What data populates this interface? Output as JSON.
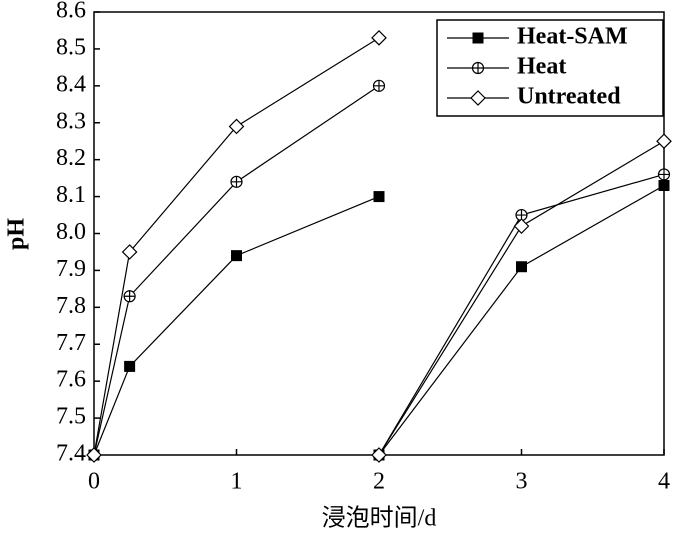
{
  "chart_data": {
    "type": "line",
    "x_label": "浸泡时间/d",
    "y_label": "pH",
    "x": [
      0,
      0.25,
      1,
      2,
      2,
      2,
      3,
      4
    ],
    "series": [
      {
        "name": "Heat-SAM",
        "color": "#000000",
        "marker": "square",
        "values": [
          7.4,
          7.64,
          7.94,
          8.1,
          null,
          7.4,
          7.91,
          8.13
        ]
      },
      {
        "name": "Heat",
        "color": "#000000",
        "marker": "circle-plus",
        "values": [
          7.4,
          7.83,
          8.14,
          8.4,
          null,
          7.4,
          8.05,
          8.16
        ]
      },
      {
        "name": "Untreated",
        "color": "#000000",
        "marker": "diamond",
        "values": [
          7.4,
          7.95,
          8.29,
          8.53,
          null,
          7.4,
          8.02,
          8.25
        ]
      }
    ],
    "xlim": [
      0,
      4
    ],
    "xticks": [
      0,
      1,
      2,
      3,
      4
    ],
    "ylim": [
      7.4,
      8.6
    ],
    "yticks": [
      7.4,
      7.5,
      7.6,
      7.7,
      7.8,
      7.9,
      {
        "value": 8,
        "label": "8.0"
      },
      8.1,
      8.2,
      8.3,
      8.4,
      8.5,
      8.6
    ],
    "legend": "upper right"
  }
}
